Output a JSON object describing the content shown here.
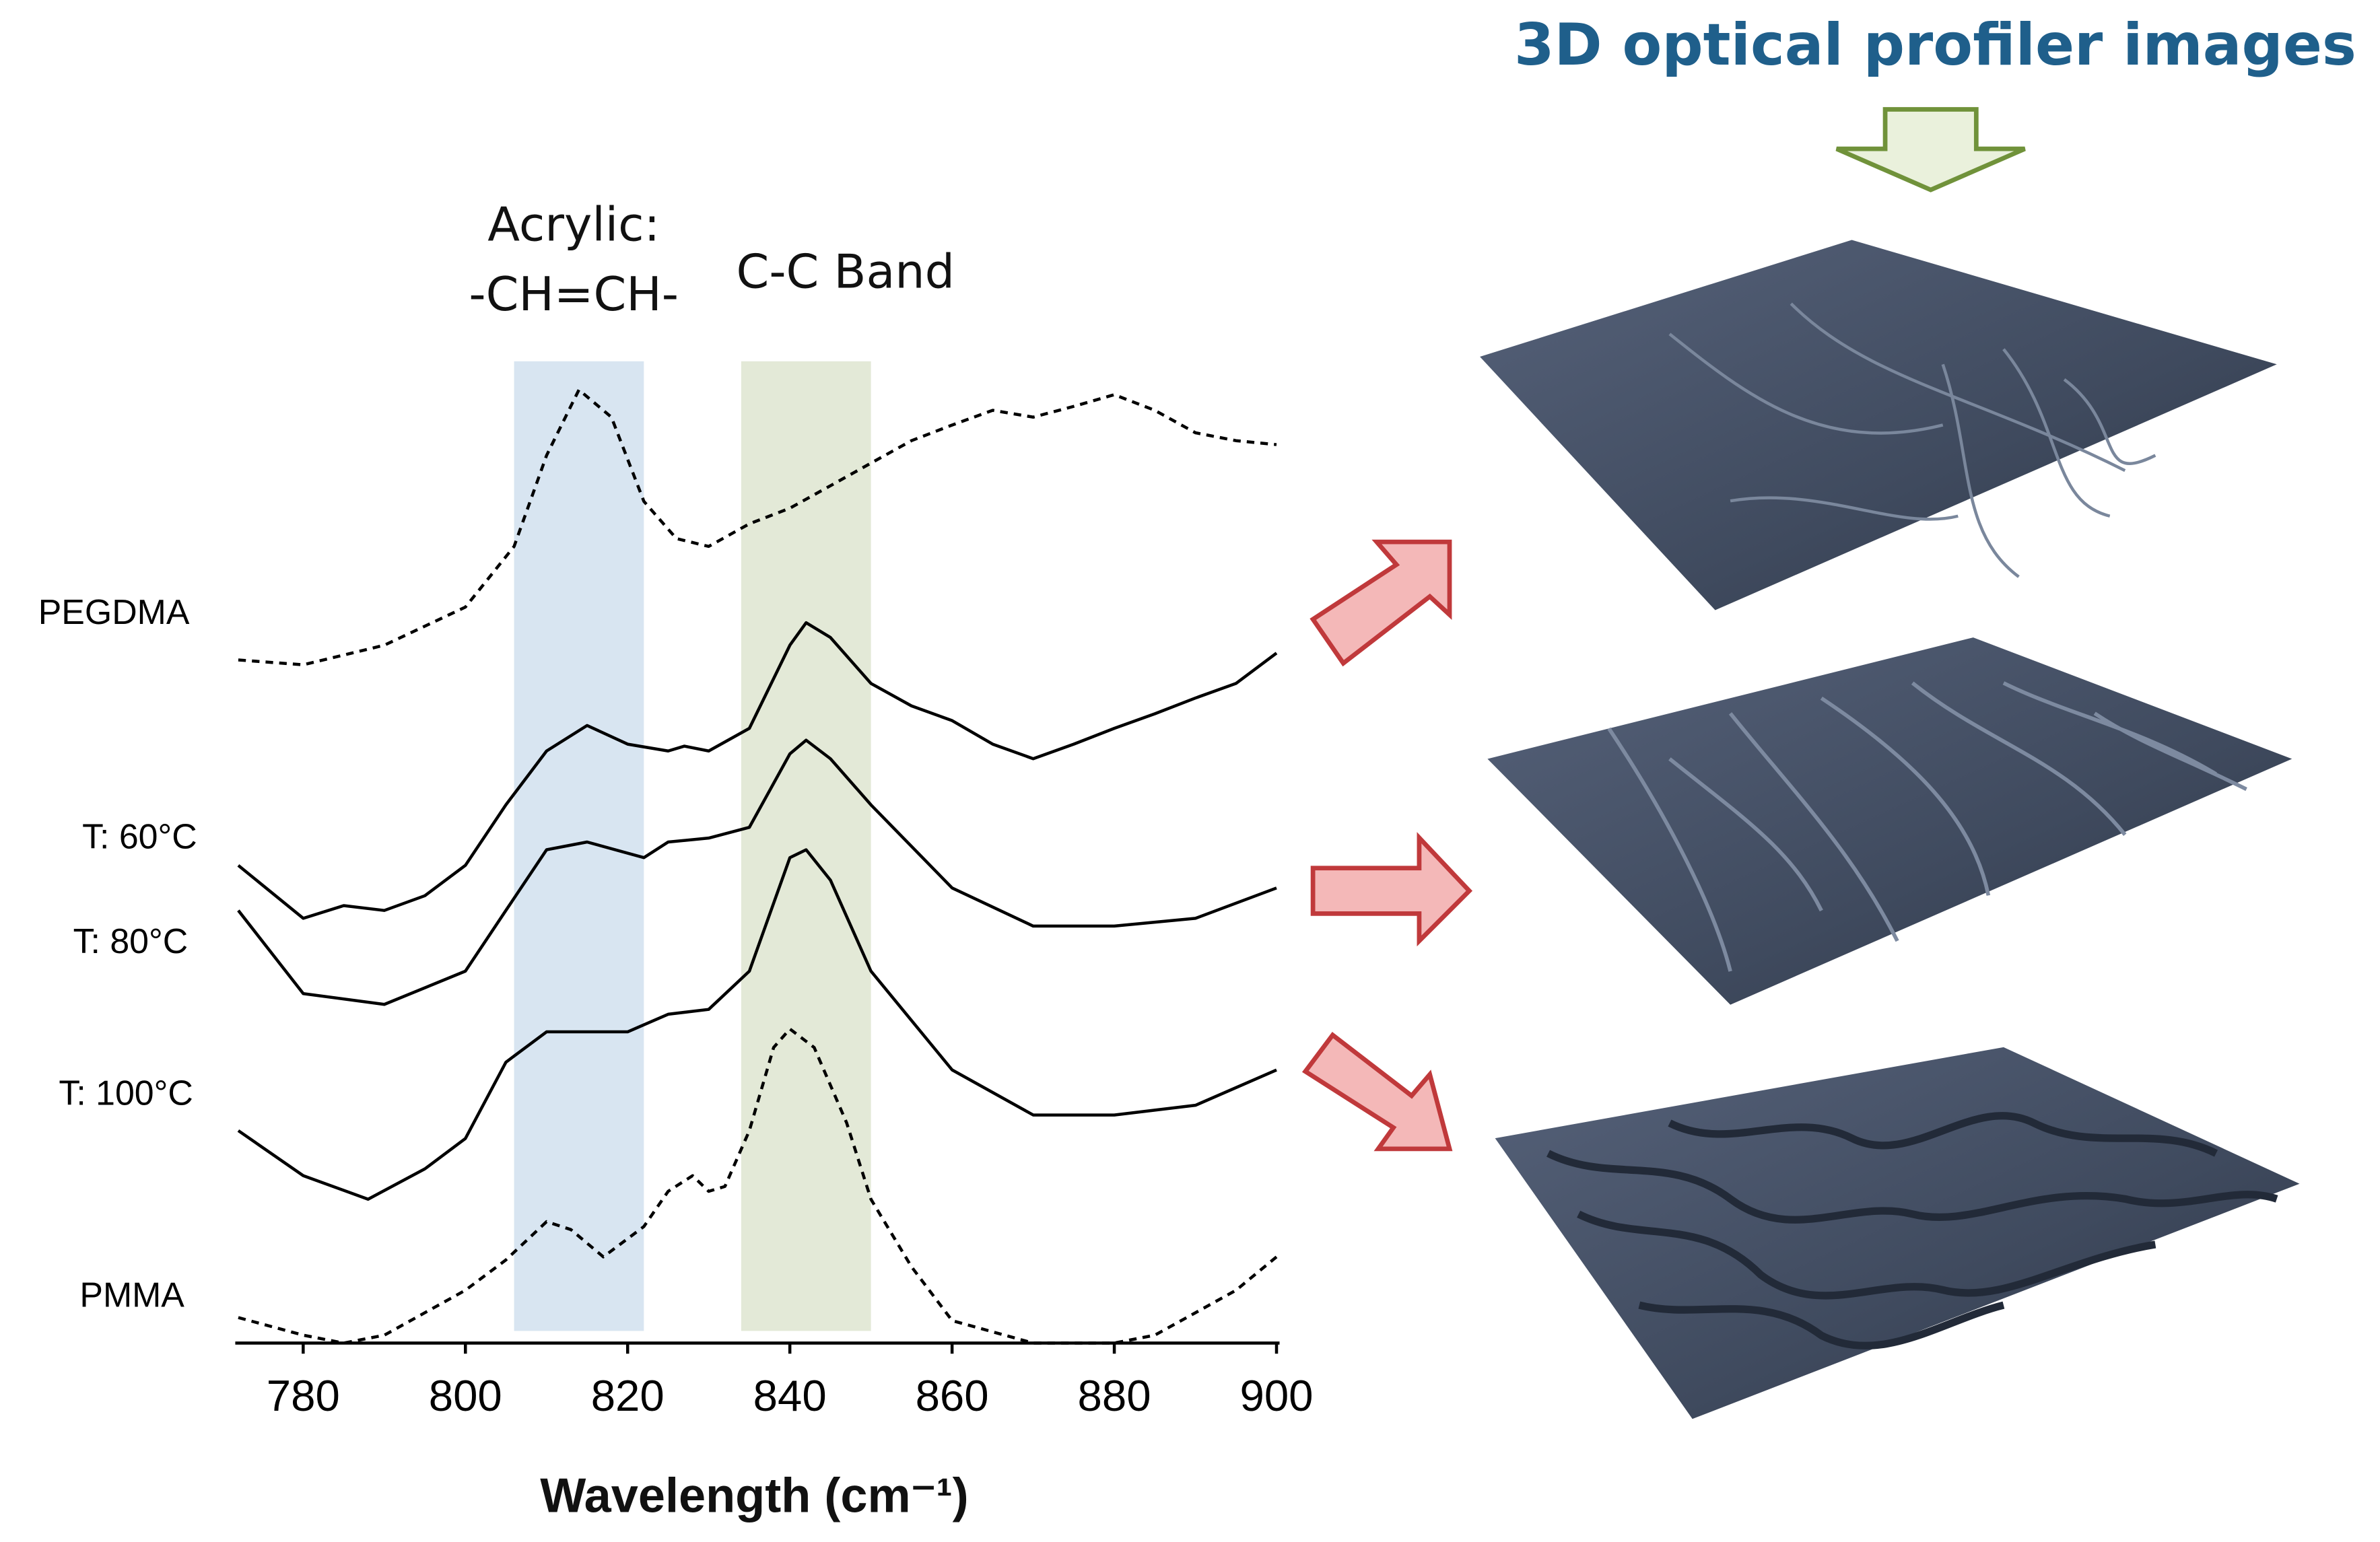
{
  "chart_data": {
    "type": "line",
    "xlabel": "Wavelength (cm⁻¹)",
    "xlim": [
      772,
      900
    ],
    "xticks": [
      780,
      800,
      820,
      840,
      860,
      880,
      900
    ],
    "ylim": [
      0,
      100
    ],
    "bands": [
      {
        "range": [
          806,
          822
        ],
        "color": "#d8e5f1"
      },
      {
        "range": [
          834,
          850
        ],
        "color": "#e3e9d7"
      }
    ],
    "annotations": [
      "Acrylic:",
      "-CH=CH-",
      "C-C Band"
    ],
    "series": [
      {
        "name": "PEGDMA",
        "color": "#000000",
        "line_style": "dashed",
        "x": [
          772,
          780,
          790,
          800,
          806,
          810,
          814,
          818,
          822,
          826,
          830,
          835,
          840,
          845,
          850,
          855,
          860,
          865,
          870,
          875,
          880,
          885,
          890,
          895,
          900
        ],
        "values": [
          69.8,
          69.3,
          71.3,
          75.2,
          81.4,
          90.7,
          97.4,
          94.6,
          86.0,
          82.2,
          81.4,
          83.7,
          85.3,
          87.6,
          89.9,
          92.2,
          93.8,
          95.3,
          94.6,
          95.7,
          96.9,
          95.3,
          93.0,
          92.2,
          91.8
        ]
      },
      {
        "name": "T: 60°C",
        "color": "#000000",
        "line_style": "solid",
        "x": [
          772,
          780,
          785,
          790,
          795,
          800,
          805,
          810,
          815,
          820,
          825,
          827,
          830,
          835,
          840,
          842,
          845,
          850,
          855,
          860,
          865,
          870,
          875,
          880,
          885,
          890,
          895,
          900
        ],
        "values": [
          48.8,
          43.4,
          44.7,
          44.2,
          45.7,
          48.8,
          55.0,
          60.5,
          63.1,
          61.2,
          60.5,
          61.0,
          60.5,
          62.8,
          71.3,
          73.6,
          72.1,
          67.4,
          65.1,
          63.6,
          61.2,
          59.7,
          61.2,
          62.8,
          64.3,
          65.9,
          67.4,
          70.5
        ]
      },
      {
        "name": "T: 80°C",
        "color": "#000000",
        "line_style": "solid",
        "x": [
          772,
          780,
          790,
          800,
          805,
          810,
          815,
          822,
          825,
          830,
          835,
          840,
          842,
          845,
          850,
          860,
          870,
          880,
          890,
          900
        ],
        "values": [
          44.2,
          35.7,
          34.6,
          38.0,
          44.2,
          50.4,
          51.2,
          49.6,
          51.2,
          51.6,
          52.7,
          60.2,
          61.6,
          59.7,
          55.0,
          46.5,
          42.6,
          42.6,
          43.4,
          46.5
        ]
      },
      {
        "name": "T: 100°C",
        "color": "#000000",
        "line_style": "solid",
        "x": [
          772,
          780,
          788,
          795,
          800,
          805,
          810,
          815,
          820,
          825,
          830,
          835,
          840,
          842,
          845,
          850,
          860,
          870,
          880,
          890,
          900
        ],
        "values": [
          21.7,
          17.1,
          14.7,
          17.8,
          20.9,
          28.7,
          31.8,
          31.8,
          31.8,
          33.6,
          34.1,
          38.0,
          49.6,
          50.4,
          47.3,
          38.0,
          27.9,
          23.3,
          23.3,
          24.3,
          27.9
        ]
      },
      {
        "name": "PMMA",
        "color": "#000000",
        "line_style": "dashed",
        "x": [
          772,
          780,
          785,
          790,
          800,
          805,
          810,
          813,
          817,
          822,
          825,
          828,
          830,
          832,
          835,
          838,
          840,
          843,
          847,
          850,
          855,
          860,
          870,
          880,
          885,
          890,
          895,
          900
        ],
        "values": [
          2.6,
          0.8,
          0,
          0.8,
          5.4,
          8.5,
          12.4,
          11.6,
          8.8,
          11.9,
          15.5,
          17.1,
          15.5,
          16.0,
          21.7,
          30.2,
          32.1,
          30.2,
          22.5,
          14.7,
          7.8,
          2.3,
          0,
          0,
          0.8,
          3.1,
          5.4,
          8.8
        ]
      }
    ]
  },
  "right_panel": {
    "title": "3D optical profiler images"
  }
}
